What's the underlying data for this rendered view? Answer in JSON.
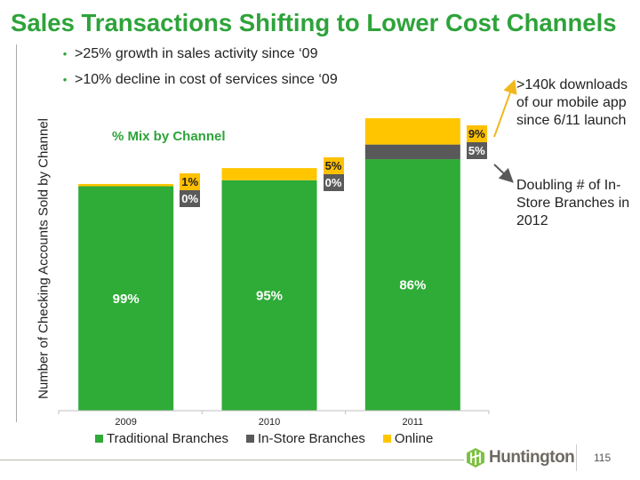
{
  "title": "Sales Transactions Shifting to Lower Cost Channels",
  "bullets": [
    ">25% growth in sales activity since ‘09",
    ">10% decline in cost of services since ‘09"
  ],
  "callouts": {
    "mobile": ">140k downloads of our mobile app since 6/11 launch",
    "instore": "Doubling # of In-Store Branches in 2012"
  },
  "footer": {
    "logo_text": "Huntington",
    "page_number": "115"
  },
  "colors": {
    "title_green": "#2ea33a",
    "traditional": "#2fab37",
    "instore": "#595959",
    "online": "#ffc600"
  },
  "chart_data": {
    "type": "bar",
    "stacked": true,
    "title": "% Mix by Channel",
    "xlabel": "",
    "ylabel": "Number of Checking Accounts Sold by Channel",
    "categories": [
      "2009",
      "2010",
      "2011"
    ],
    "totals_index": [
      100,
      107,
      129
    ],
    "ylim": [
      0,
      130
    ],
    "grid": false,
    "legend_position": "bottom",
    "series": [
      {
        "name": "Traditional Branches",
        "values": [
          99,
          95,
          86
        ],
        "labels": [
          "99%",
          "95%",
          "86%"
        ]
      },
      {
        "name": "In-Store Branches",
        "values": [
          0,
          0,
          5
        ],
        "labels": [
          "0%",
          "0%",
          "5%"
        ]
      },
      {
        "name": "Online",
        "values": [
          1,
          5,
          9
        ],
        "labels": [
          "1%",
          "5%",
          "9%"
        ]
      }
    ]
  }
}
